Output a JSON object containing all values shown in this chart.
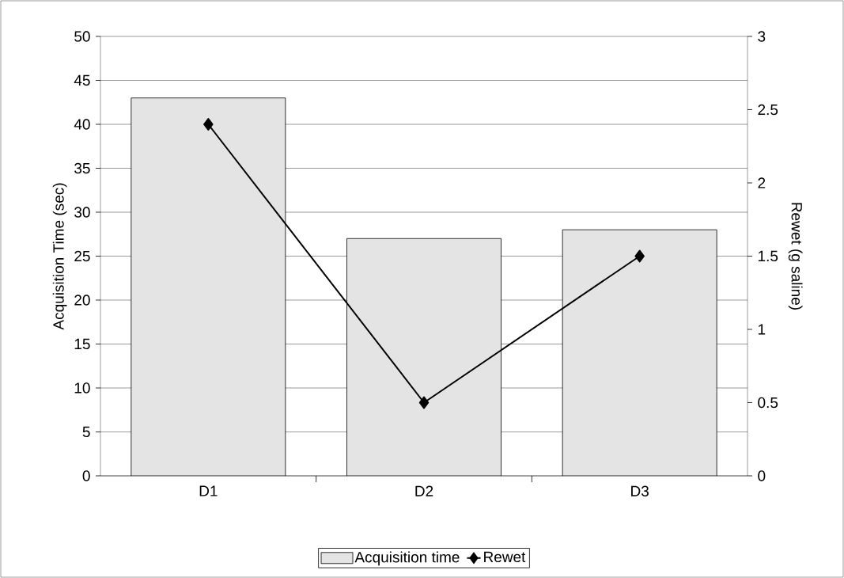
{
  "chart_data": {
    "type": "bar",
    "categories": [
      "D1",
      "D2",
      "D3"
    ],
    "series": [
      {
        "name": "Acquisition time",
        "color": "#e4e4e4",
        "values": [
          43,
          27,
          28
        ]
      },
      {
        "name": "Rewet",
        "type": "line",
        "axis": "y2",
        "color": "#000000",
        "values": [
          2.4,
          0.5,
          1.5
        ]
      }
    ],
    "ylabel": "Acquisition Time (sec)",
    "y2label": "Rewet (g saline)",
    "ylim": [
      0,
      50
    ],
    "yticks": [
      0,
      5,
      10,
      15,
      20,
      25,
      30,
      35,
      40,
      45,
      50
    ],
    "y2lim": [
      0,
      3
    ],
    "y2ticks": [
      0,
      0.5,
      1,
      1.5,
      2,
      2.5,
      3
    ],
    "grid": "y",
    "legend": "bottom",
    "marker": "diamond",
    "line_style": "solid"
  }
}
